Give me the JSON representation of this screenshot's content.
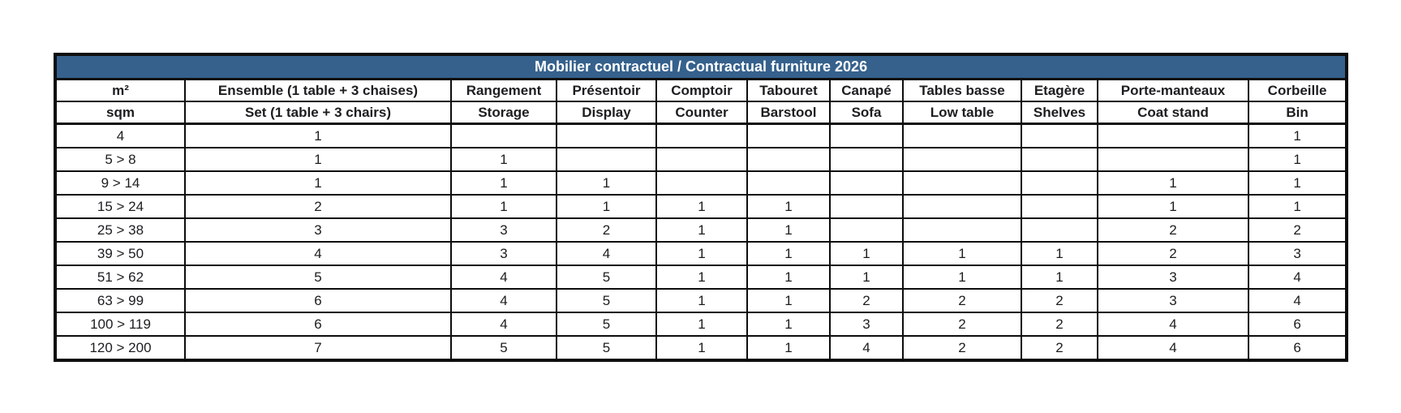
{
  "title": "Mobilier contractuel / Contractual furniture 2026",
  "colors": {
    "title_bg": "#35618c",
    "title_text": "#ffffff",
    "border": "#0d0d0d",
    "cell_text": "#1d1d20"
  },
  "columns": [
    {
      "fr": "m²",
      "en": "sqm"
    },
    {
      "fr": "Ensemble (1 table + 3 chaises)",
      "en": "Set (1 table + 3 chairs)"
    },
    {
      "fr": "Rangement",
      "en": "Storage"
    },
    {
      "fr": "Présentoir",
      "en": "Display"
    },
    {
      "fr": "Comptoir",
      "en": "Counter"
    },
    {
      "fr": "Tabouret",
      "en": "Barstool"
    },
    {
      "fr": "Canapé",
      "en": "Sofa"
    },
    {
      "fr": "Tables basse",
      "en": "Low table"
    },
    {
      "fr": "Etagère",
      "en": "Shelves"
    },
    {
      "fr": "Porte-manteaux",
      "en": "Coat stand"
    },
    {
      "fr": "Corbeille",
      "en": "Bin"
    }
  ],
  "rows": [
    {
      "range": "4",
      "values": [
        "1",
        "",
        "",
        "",
        "",
        "",
        "",
        "",
        "",
        "1"
      ]
    },
    {
      "range": "5 > 8",
      "values": [
        "1",
        "1",
        "",
        "",
        "",
        "",
        "",
        "",
        "",
        "1"
      ]
    },
    {
      "range": "9 > 14",
      "values": [
        "1",
        "1",
        "1",
        "",
        "",
        "",
        "",
        "",
        "1",
        "1"
      ]
    },
    {
      "range": "15 > 24",
      "values": [
        "2",
        "1",
        "1",
        "1",
        "1",
        "",
        "",
        "",
        "1",
        "1"
      ]
    },
    {
      "range": "25 > 38",
      "values": [
        "3",
        "3",
        "2",
        "1",
        "1",
        "",
        "",
        "",
        "2",
        "2"
      ]
    },
    {
      "range": "39 > 50",
      "values": [
        "4",
        "3",
        "4",
        "1",
        "1",
        "1",
        "1",
        "1",
        "2",
        "3"
      ]
    },
    {
      "range": "51 > 62",
      "values": [
        "5",
        "4",
        "5",
        "1",
        "1",
        "1",
        "1",
        "1",
        "3",
        "4"
      ]
    },
    {
      "range": "63 > 99",
      "values": [
        "6",
        "4",
        "5",
        "1",
        "1",
        "2",
        "2",
        "2",
        "3",
        "4"
      ]
    },
    {
      "range": "100 > 119",
      "values": [
        "6",
        "4",
        "5",
        "1",
        "1",
        "3",
        "2",
        "2",
        "4",
        "6"
      ]
    },
    {
      "range": "120 > 200",
      "values": [
        "7",
        "5",
        "5",
        "1",
        "1",
        "4",
        "2",
        "2",
        "4",
        "6"
      ]
    }
  ]
}
